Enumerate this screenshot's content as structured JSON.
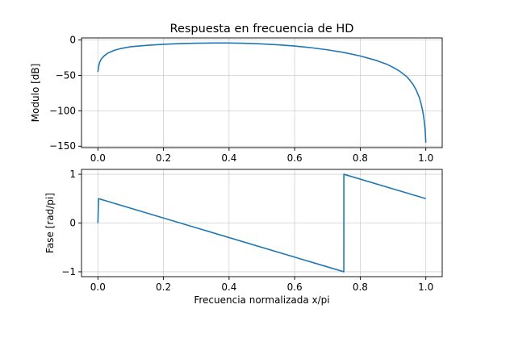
{
  "chart_data": [
    {
      "type": "line",
      "title": "Respuesta en frecuencia de HD",
      "xlabel": "",
      "ylabel": "Modulo [dB]",
      "xlim": [
        -0.05,
        1.05
      ],
      "ylim": [
        -152,
        3
      ],
      "grid": true,
      "color": "#1f77b4",
      "xticks": [
        0.0,
        0.2,
        0.4,
        0.6,
        0.8,
        1.0
      ],
      "xtick_labels": [
        "0.0",
        "0.2",
        "0.4",
        "0.6",
        "0.8",
        "1.0"
      ],
      "yticks": [
        0,
        -50,
        -100,
        -150
      ],
      "ytick_labels": [
        "0",
        "−50",
        "−100",
        "−150"
      ],
      "series": [
        {
          "x": [
            0.0,
            0.002,
            0.005,
            0.01,
            0.02,
            0.03,
            0.05,
            0.07,
            0.1,
            0.15,
            0.2,
            0.25,
            0.3,
            0.35,
            0.4,
            0.45,
            0.5,
            0.55,
            0.6,
            0.65,
            0.7,
            0.75,
            0.8,
            0.85,
            0.88,
            0.9,
            0.92,
            0.94,
            0.95,
            0.96,
            0.97,
            0.98,
            0.985,
            0.99,
            0.993,
            0.996,
            0.998,
            1.0
          ],
          "y": [
            -45,
            -38,
            -32,
            -27,
            -22,
            -18.5,
            -14.5,
            -12,
            -9.5,
            -7.5,
            -6,
            -5,
            -4.5,
            -4.2,
            -4.2,
            -4.6,
            -5.5,
            -6.8,
            -8.5,
            -10.8,
            -13.8,
            -17.6,
            -22.5,
            -29,
            -34,
            -38.5,
            -44,
            -51,
            -56,
            -62,
            -70,
            -81,
            -89,
            -99,
            -107,
            -118,
            -128,
            -145
          ]
        }
      ]
    },
    {
      "type": "line",
      "title": "",
      "xlabel": "Frecuencia normalizada x/pi",
      "ylabel": "Fase [rad/pi]",
      "xlim": [
        -0.05,
        1.05
      ],
      "ylim": [
        -1.1,
        1.1
      ],
      "grid": true,
      "color": "#1f77b4",
      "xticks": [
        0.0,
        0.2,
        0.4,
        0.6,
        0.8,
        1.0
      ],
      "xtick_labels": [
        "0.0",
        "0.2",
        "0.4",
        "0.6",
        "0.8",
        "1.0"
      ],
      "yticks": [
        1,
        0,
        -1
      ],
      "ytick_labels": [
        "1",
        "0",
        "−1"
      ],
      "series": [
        {
          "x": [
            0.0,
            0.002,
            0.75,
            0.7501,
            1.0
          ],
          "y": [
            0.0,
            0.5,
            -1.0,
            1.0,
            0.5
          ]
        }
      ]
    }
  ]
}
